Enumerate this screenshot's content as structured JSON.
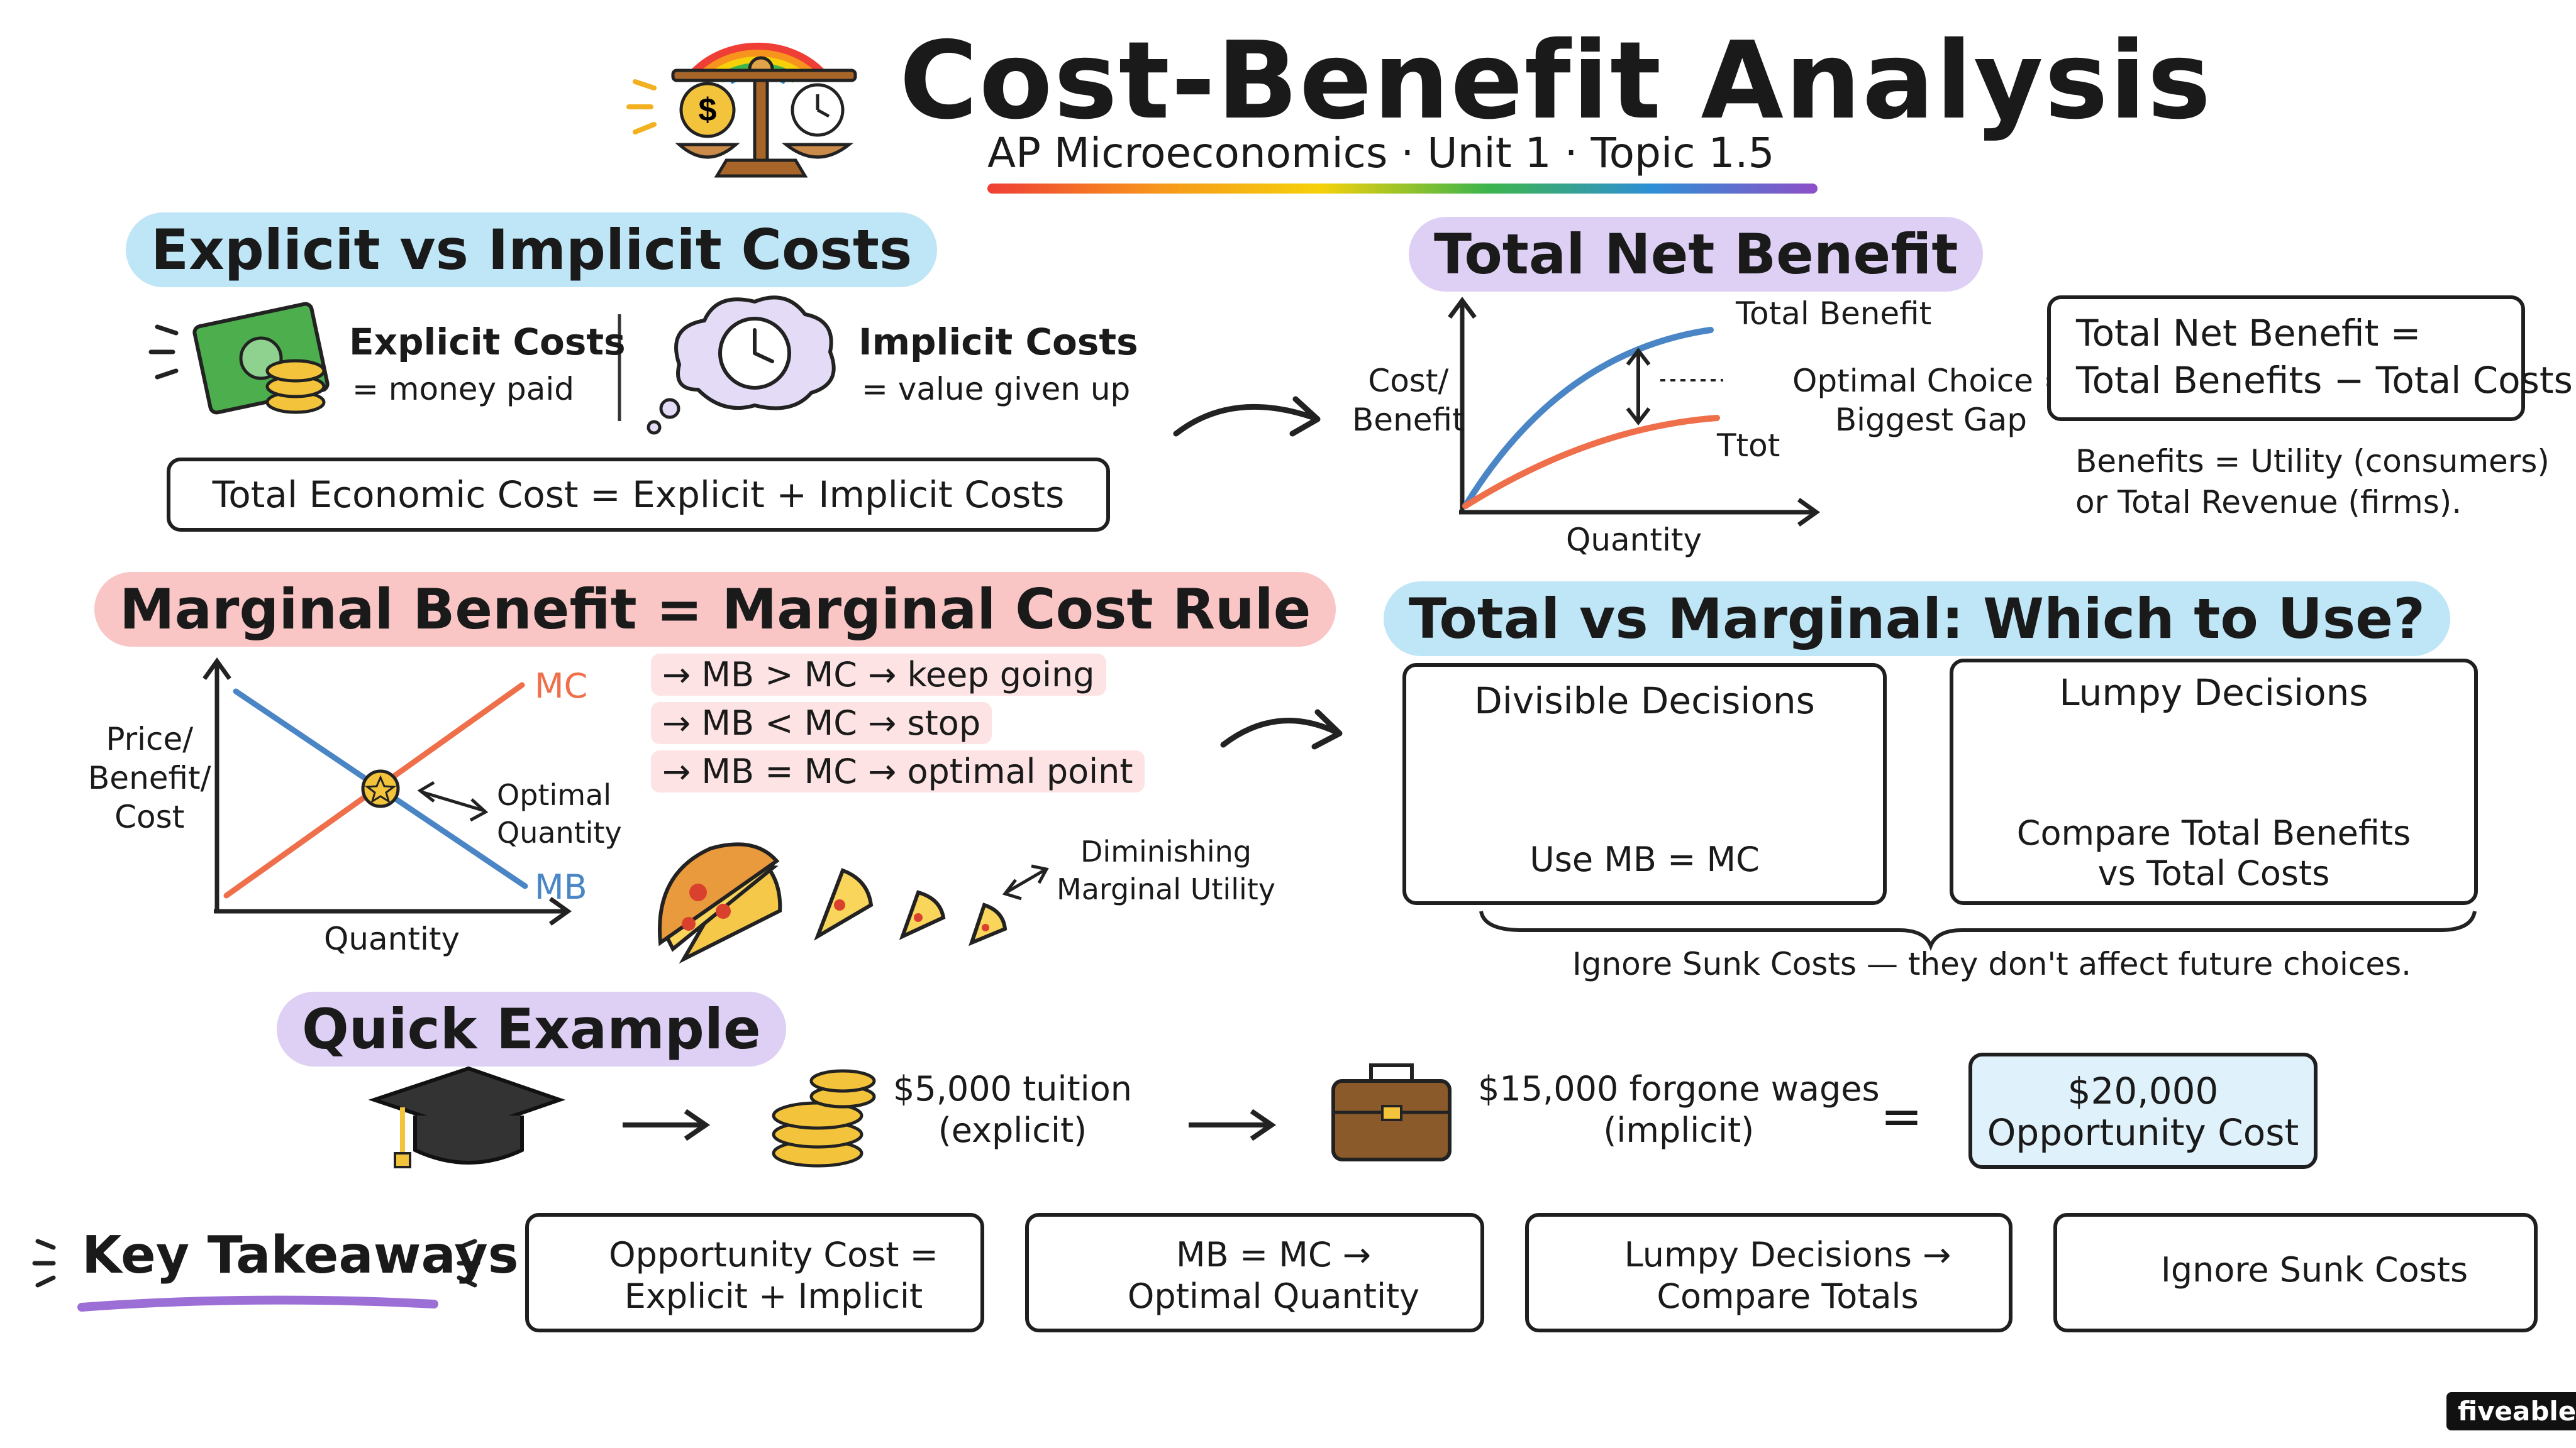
{
  "title": "Cost-Benefit Analysis",
  "subtitle": "AP Microeconomics  ·  Unit 1  ·  Topic  1.5",
  "sections": {
    "explicit_implicit": {
      "heading": "Explicit vs Implicit Costs",
      "explicit_label": "Explicit Costs",
      "explicit_desc": "= money paid",
      "implicit_label": "Implicit Costs",
      "implicit_desc": "= value given up",
      "formula": "Total Economic Cost  =  Explicit + Implicit Costs"
    },
    "total_net_benefit": {
      "heading": "Total Net Benefit",
      "y_axis": "Cost/\nBenefit",
      "x_axis": "Quantity",
      "curve_benefit": "Total Benefit",
      "curve_cost": "Ttot",
      "gap_label": "Optimal Choice =\nBiggest Gap",
      "formula_line1": "Total Net Benefit =",
      "formula_line2": "Total Benefits − Total Costs",
      "note_line1": "Benefits = Utility (consumers)",
      "note_line2": "or Total Revenue (firms)."
    },
    "mb_mc": {
      "heading": "Marginal Benefit = Marginal Cost Rule",
      "y_axis": "Price/\nBenefit/\nCost",
      "x_axis": "Quantity",
      "mc_label": "MC",
      "mb_label": "MB",
      "optimal_label": "Optimal\nQuantity",
      "rules": [
        "→ MB > MC → keep going",
        "→ MB < MC → stop",
        "→ MB = MC → optimal point"
      ],
      "diminishing_label": "Diminishing\nMarginal Utility"
    },
    "total_vs_marginal": {
      "heading": "Total vs Marginal: Which to Use?",
      "divisible_title": "Divisible Decisions",
      "divisible_rule": "Use MB = MC",
      "lumpy_title": "Lumpy Decisions",
      "lumpy_rule": "Compare Total Benefits\nvs Total Costs",
      "sunk_note": "Ignore Sunk Costs — they don't affect future choices."
    },
    "quick_example": {
      "heading": "Quick Example",
      "tuition": "$5,000 tuition\n(explicit)",
      "wages": "$15,000 forgone wages\n(implicit)",
      "equals": "=",
      "result": "$20,000\nOpportunity Cost"
    },
    "key_takeaways": {
      "heading": "Key Takeaways",
      "items": [
        "Opportunity Cost =\nExplicit + Implicit",
        "MB = MC →\nOptimal Quantity",
        "Lumpy Decisions →\nCompare Totals",
        "Ignore Sunk Costs"
      ]
    }
  },
  "brand": "fiveable",
  "colors": {
    "accent_blue": "#bfe6f6",
    "accent_pink": "#f9c5c5",
    "accent_purple": "#ddd0f4",
    "curve_blue": "#4a86c5",
    "curve_orange": "#ef6f4a",
    "result_fill": "#dff1fa"
  },
  "icons": [
    "balance-scale-icon",
    "rainbow-icon",
    "money-icon",
    "clock-thought-icon",
    "heart-icon",
    "graduation-cap-icon",
    "coins-icon",
    "briefcase-icon",
    "soda-can-icon",
    "bridge-icon",
    "pizza-icon"
  ]
}
